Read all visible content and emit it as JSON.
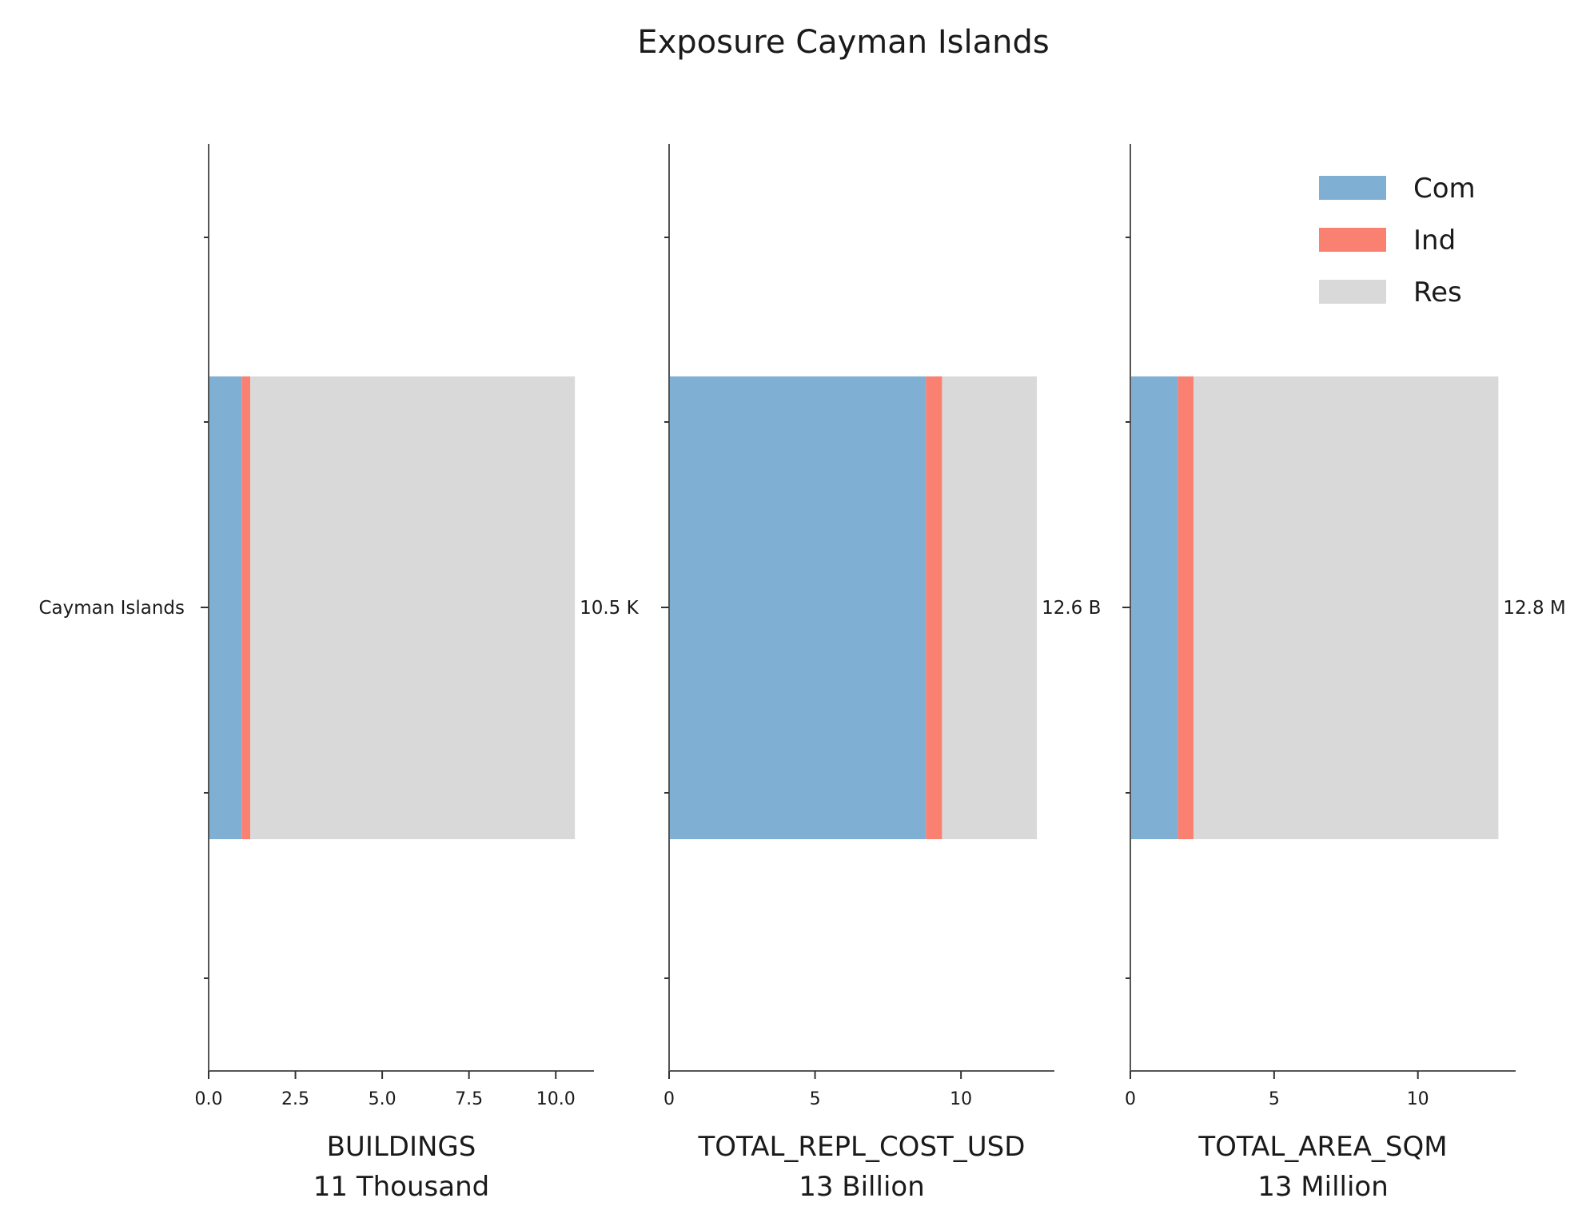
{
  "chart_data": {
    "type": "bar",
    "title": "Exposure Cayman Islands",
    "orientation": "horizontal",
    "stacked": true,
    "categories": [
      "Cayman Islands"
    ],
    "legend": {
      "placement": "top-right",
      "entries": [
        {
          "name": "Com",
          "color": "#7fb0d3"
        },
        {
          "name": "Ind",
          "color": "#fa8072"
        },
        {
          "name": "Res",
          "color": "#d9d9d9"
        }
      ]
    },
    "panels": [
      {
        "xlabel": "BUILDINGS",
        "sublabel": "11 Thousand",
        "xlim": [
          0,
          11.1
        ],
        "xticks": [
          {
            "value": 0,
            "label": "0.0"
          },
          {
            "value": 2.5,
            "label": "2.5"
          },
          {
            "value": 5,
            "label": "5.0"
          },
          {
            "value": 7.5,
            "label": "7.5"
          },
          {
            "value": 10,
            "label": "10.0"
          }
        ],
        "series": [
          {
            "name": "Com",
            "values": [
              0.95
            ]
          },
          {
            "name": "Ind",
            "values": [
              0.25
            ]
          },
          {
            "name": "Res",
            "values": [
              9.35
            ]
          }
        ],
        "total_label": "10.5 K"
      },
      {
        "xlabel": "TOTAL_REPL_COST_USD",
        "sublabel": "13 Billion",
        "xlim": [
          0,
          13.2
        ],
        "xticks": [
          {
            "value": 0,
            "label": "0"
          },
          {
            "value": 5,
            "label": "5"
          },
          {
            "value": 10,
            "label": "10"
          }
        ],
        "series": [
          {
            "name": "Com",
            "values": [
              8.8
            ]
          },
          {
            "name": "Ind",
            "values": [
              0.55
            ]
          },
          {
            "name": "Res",
            "values": [
              3.25
            ]
          }
        ],
        "total_label": "12.6 B"
      },
      {
        "xlabel": "TOTAL_AREA_SQM",
        "sublabel": "13 Million",
        "xlim": [
          0,
          13.4
        ],
        "xticks": [
          {
            "value": 0,
            "label": "0"
          },
          {
            "value": 5,
            "label": "5"
          },
          {
            "value": 10,
            "label": "10"
          }
        ],
        "series": [
          {
            "name": "Com",
            "values": [
              1.65
            ]
          },
          {
            "name": "Ind",
            "values": [
              0.55
            ]
          },
          {
            "name": "Res",
            "values": [
              10.6
            ]
          }
        ],
        "total_label": "12.8 M"
      }
    ]
  }
}
